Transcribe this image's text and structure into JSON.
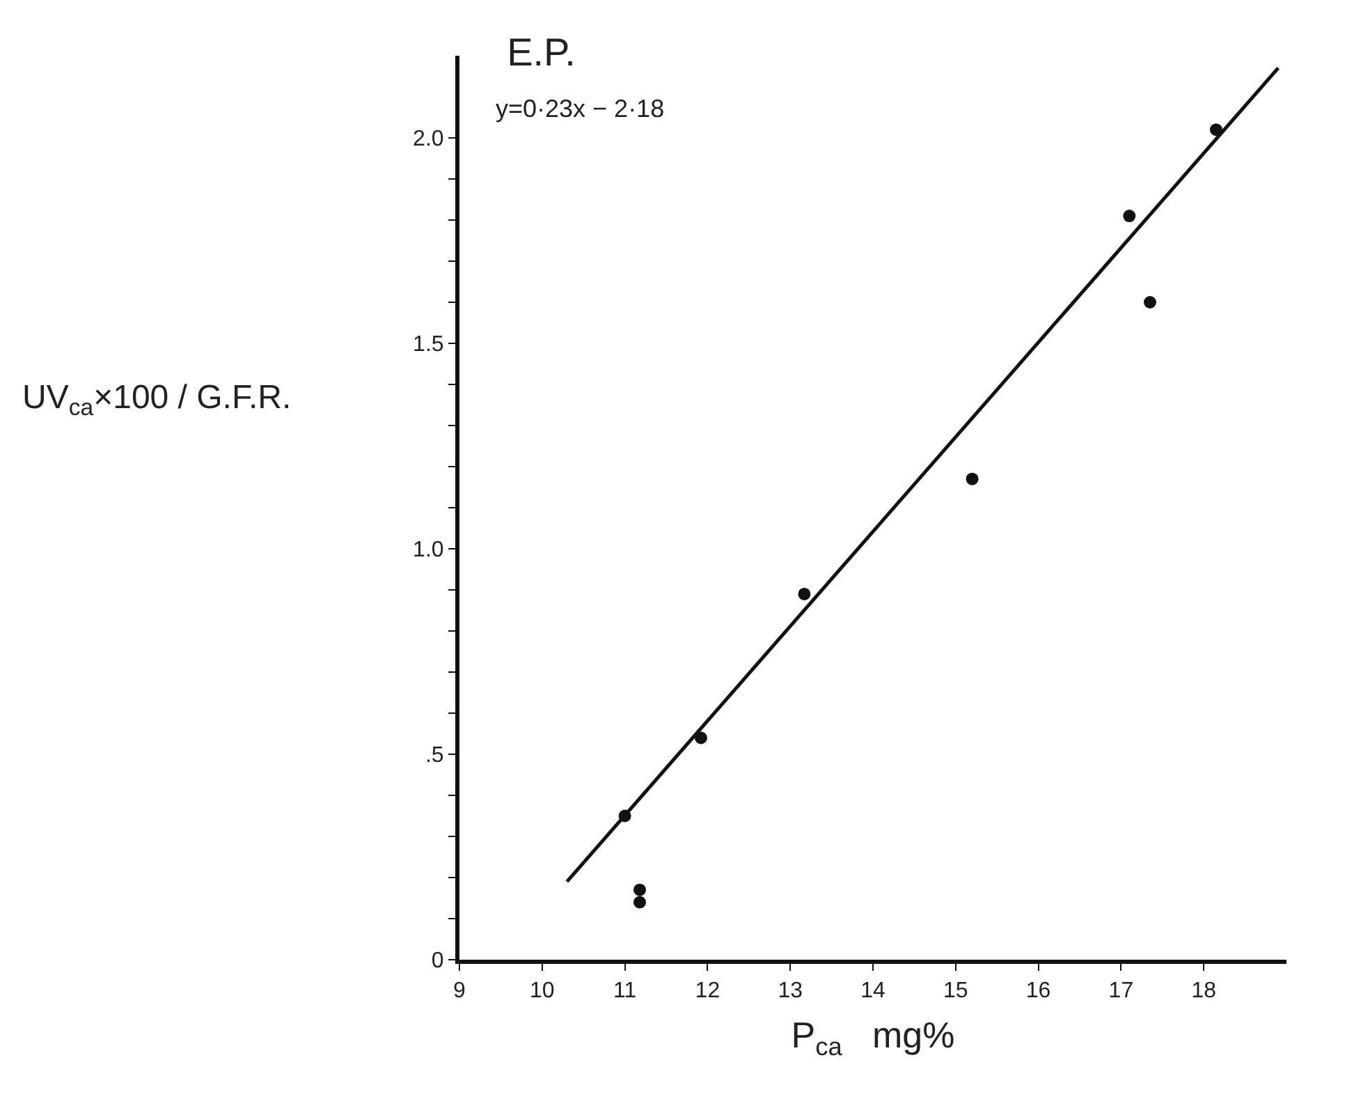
{
  "chart_data": {
    "type": "scatter",
    "title": "E.P.",
    "annotations": [
      "y=0·23x − 2·18"
    ],
    "xlabel": "P$_{ca}$   mg%",
    "ylabel": "UV$_{ca}$×100 / G.F.R.",
    "series": [
      {
        "color": "#111111",
        "marker": "circle",
        "x": [
          11.0,
          11.18,
          11.18,
          11.92,
          13.17,
          15.2,
          17.1,
          17.35,
          18.15
        ],
        "values": [
          0.35,
          0.17,
          0.14,
          0.54,
          0.89,
          1.17,
          1.81,
          1.6,
          2.02
        ]
      },
      {
        "type": "line",
        "color": "#111111",
        "x": [
          10.3,
          18.9
        ],
        "values": [
          0.19,
          2.17
        ]
      }
    ],
    "line_style": "solid",
    "xlim": [
      9,
      19
    ],
    "ylim": [
      0,
      2.2
    ],
    "xticks": [
      9,
      10,
      11,
      12,
      13,
      14,
      15,
      16,
      17,
      18
    ],
    "yticks": [
      {
        "value": 0,
        "label": "0"
      },
      {
        "value": 0.1,
        "label": null
      },
      {
        "value": 0.2,
        "label": null
      },
      {
        "value": 0.3,
        "label": null
      },
      {
        "value": 0.4,
        "label": null
      },
      {
        "value": 0.5,
        "label": ".5"
      },
      {
        "value": 0.6,
        "label": null
      },
      {
        "value": 0.7,
        "label": null
      },
      {
        "value": 0.8,
        "label": null
      },
      {
        "value": 0.9,
        "label": null
      },
      {
        "value": 1.0,
        "label": "1.0"
      },
      {
        "value": 1.1,
        "label": null
      },
      {
        "value": 1.2,
        "label": null
      },
      {
        "value": 1.3,
        "label": null
      },
      {
        "value": 1.4,
        "label": null
      },
      {
        "value": 1.5,
        "label": "1.5"
      },
      {
        "value": 1.6,
        "label": null
      },
      {
        "value": 1.7,
        "label": null
      },
      {
        "value": 1.8,
        "label": null
      },
      {
        "value": 1.9,
        "label": null
      },
      {
        "value": 2.0,
        "label": "2.0"
      }
    ]
  }
}
